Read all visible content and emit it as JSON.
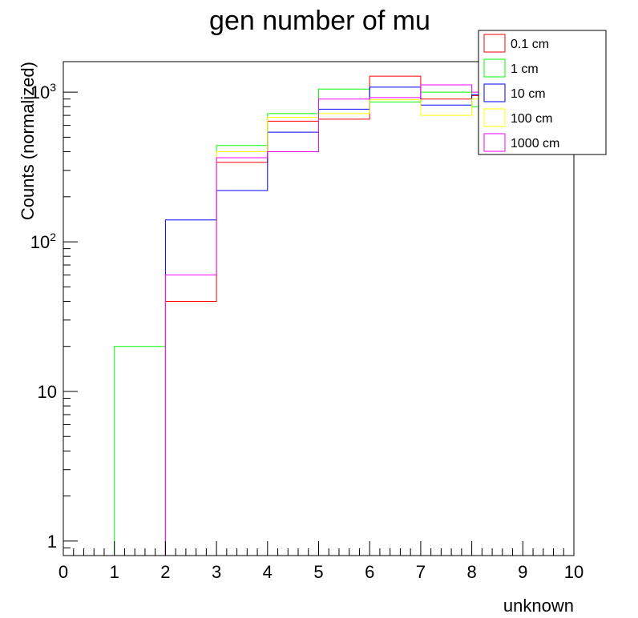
{
  "chart_data": {
    "type": "histogram-step",
    "title": "gen number of mu",
    "xlabel": "unknown",
    "ylabel": "Counts (normalized)",
    "x_scale": "linear",
    "y_scale": "log",
    "xlim": [
      0,
      10
    ],
    "ylim": [
      0.8,
      1600
    ],
    "bin_edges": [
      0,
      1,
      2,
      3,
      4,
      5,
      6,
      7,
      8,
      9,
      10
    ],
    "x_ticks": [
      "0",
      "1",
      "2",
      "3",
      "4",
      "5",
      "6",
      "7",
      "8",
      "9",
      "10"
    ],
    "y_ticks": [
      {
        "value": 1,
        "label": "1"
      },
      {
        "value": 10,
        "label": "10"
      },
      {
        "value": 100,
        "base": "10",
        "exp": "2"
      },
      {
        "value": 1000,
        "base": "10",
        "exp": "3"
      }
    ],
    "grid": false,
    "legend_position": "top-right",
    "series": [
      {
        "name": "0.1 cm",
        "color": "#ff0000",
        "values": [
          0.8,
          0.8,
          40,
          340,
          640,
          660,
          1280,
          900,
          950,
          950
        ]
      },
      {
        "name": "1 cm",
        "color": "#00ff00",
        "values": [
          0.8,
          20,
          60,
          440,
          720,
          1050,
          860,
          1000,
          800,
          800
        ]
      },
      {
        "name": "10 cm",
        "color": "#0000ff",
        "values": [
          0.8,
          0.8,
          140,
          220,
          540,
          770,
          1080,
          820,
          960,
          960
        ]
      },
      {
        "name": "100 cm",
        "color": "#ffff00",
        "values": [
          0.8,
          0.8,
          60,
          400,
          680,
          720,
          890,
          700,
          900,
          900
        ]
      },
      {
        "name": "1000 cm",
        "color": "#ff00ff",
        "values": [
          0.8,
          0.8,
          60,
          365,
          400,
          900,
          920,
          1120,
          1000,
          1000
        ]
      }
    ]
  }
}
